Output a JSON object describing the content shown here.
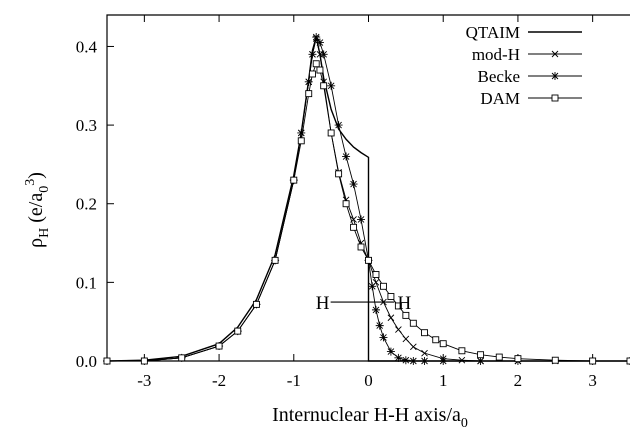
{
  "chart_data": {
    "type": "line",
    "title": "",
    "xlabel": {
      "main": "Internuclear H-H axis/a",
      "sub": "0"
    },
    "ylabel": {
      "rho": "ρ",
      "rho_sub": "H",
      "open": " (e/a",
      "a_sub": "0",
      "a_sup": "3",
      "close": ")"
    },
    "xlim": [
      -3.5,
      3.5
    ],
    "ylim": [
      0,
      0.44
    ],
    "xticks": [
      -3,
      -2,
      -1,
      0,
      1,
      2,
      3
    ],
    "yticks": [
      0.0,
      0.1,
      0.2,
      0.3,
      0.4
    ],
    "xtick_labels": [
      "-3",
      "-2",
      "-1",
      "0",
      "1",
      "2",
      "3"
    ],
    "ytick_labels": [
      "0.0",
      "0.1",
      "0.2",
      "0.3",
      "0.4"
    ],
    "legend_position": "top-right",
    "annotation": {
      "left_label": "H",
      "right_label": "H",
      "x_left": -0.48,
      "x_right": 0.48,
      "y": 0.075
    },
    "series": [
      {
        "name": "QTAIM",
        "marker": "none",
        "x": [
          -3.5,
          -3.0,
          -2.5,
          -2.0,
          -1.75,
          -1.5,
          -1.25,
          -1.0,
          -0.9,
          -0.8,
          -0.75,
          -0.7,
          -0.65,
          -0.6,
          -0.5,
          -0.4,
          -0.3,
          -0.2,
          -0.1,
          0.0,
          0.0,
          0.5,
          1.0,
          2.0,
          3.0,
          3.5
        ],
        "y": [
          0.0,
          0.001,
          0.006,
          0.022,
          0.043,
          0.078,
          0.135,
          0.236,
          0.29,
          0.358,
          0.395,
          0.412,
          0.39,
          0.36,
          0.32,
          0.295,
          0.282,
          0.272,
          0.265,
          0.259,
          0.0,
          0.0,
          0.0,
          0.0,
          0.0,
          0.0
        ]
      },
      {
        "name": "mod-H",
        "marker": "cross",
        "x": [
          -3.5,
          -3.0,
          -2.5,
          -2.0,
          -1.75,
          -1.5,
          -1.25,
          -1.0,
          -0.9,
          -0.8,
          -0.75,
          -0.7,
          -0.65,
          -0.6,
          -0.5,
          -0.4,
          -0.3,
          -0.2,
          -0.1,
          0.0,
          0.1,
          0.2,
          0.3,
          0.4,
          0.5,
          0.6,
          0.75,
          1.0,
          1.25,
          1.5,
          2.0,
          2.5,
          3.0,
          3.5
        ],
        "y": [
          0.0,
          0.0,
          0.004,
          0.019,
          0.038,
          0.072,
          0.128,
          0.23,
          0.29,
          0.355,
          0.39,
          0.41,
          0.39,
          0.355,
          0.29,
          0.24,
          0.205,
          0.18,
          0.15,
          0.128,
          0.1,
          0.075,
          0.055,
          0.04,
          0.028,
          0.018,
          0.01,
          0.003,
          0.001,
          0.0,
          0.0,
          0.0,
          0.0,
          0.0
        ]
      },
      {
        "name": "Becke",
        "marker": "star",
        "x": [
          -3.5,
          -3.0,
          -2.5,
          -2.0,
          -1.75,
          -1.5,
          -1.25,
          -1.0,
          -0.9,
          -0.8,
          -0.75,
          -0.7,
          -0.65,
          -0.6,
          -0.5,
          -0.4,
          -0.3,
          -0.2,
          -0.1,
          0.0,
          0.05,
          0.1,
          0.15,
          0.2,
          0.3,
          0.4,
          0.5,
          0.6,
          0.75,
          1.0,
          1.5,
          2.0,
          3.0,
          3.5
        ],
        "y": [
          0.0,
          0.0,
          0.004,
          0.019,
          0.038,
          0.072,
          0.128,
          0.23,
          0.29,
          0.355,
          0.39,
          0.412,
          0.405,
          0.39,
          0.35,
          0.3,
          0.26,
          0.225,
          0.18,
          0.128,
          0.095,
          0.065,
          0.045,
          0.03,
          0.012,
          0.004,
          0.001,
          0.0,
          0.0,
          0.0,
          0.0,
          0.0,
          0.0,
          0.0
        ]
      },
      {
        "name": "DAM",
        "marker": "square",
        "x": [
          -3.5,
          -3.0,
          -2.5,
          -2.0,
          -1.75,
          -1.5,
          -1.25,
          -1.0,
          -0.9,
          -0.8,
          -0.75,
          -0.7,
          -0.65,
          -0.6,
          -0.5,
          -0.4,
          -0.3,
          -0.2,
          -0.1,
          0.0,
          0.1,
          0.2,
          0.3,
          0.4,
          0.5,
          0.6,
          0.75,
          0.9,
          1.0,
          1.25,
          1.5,
          1.75,
          2.0,
          2.5,
          3.0,
          3.5
        ],
        "y": [
          0.0,
          0.0,
          0.004,
          0.019,
          0.038,
          0.072,
          0.128,
          0.23,
          0.28,
          0.34,
          0.365,
          0.378,
          0.37,
          0.35,
          0.29,
          0.238,
          0.2,
          0.17,
          0.145,
          0.128,
          0.11,
          0.095,
          0.082,
          0.07,
          0.058,
          0.048,
          0.036,
          0.027,
          0.022,
          0.013,
          0.008,
          0.005,
          0.003,
          0.001,
          0.0,
          0.0
        ]
      }
    ]
  }
}
